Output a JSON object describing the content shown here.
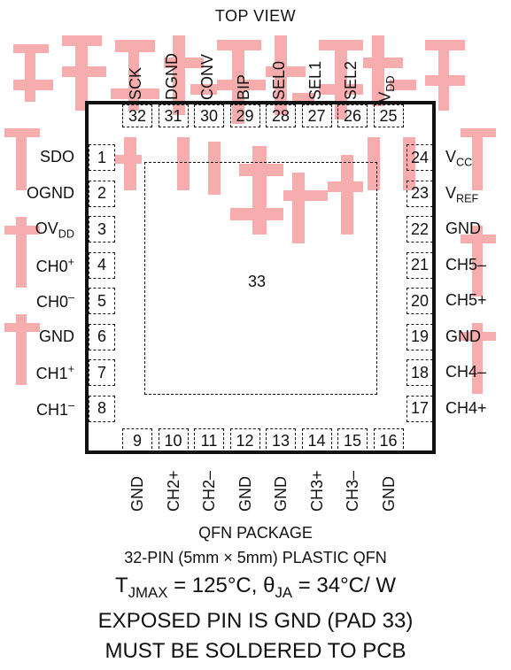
{
  "title": "TOP VIEW",
  "exposed_pad_number": "33",
  "top_pins": [
    {
      "num": "32",
      "name": "SCK"
    },
    {
      "num": "31",
      "name": "DGND"
    },
    {
      "num": "30",
      "name": "CONV"
    },
    {
      "num": "29",
      "name": "BIP"
    },
    {
      "num": "28",
      "name": "SEL0"
    },
    {
      "num": "27",
      "name": "SEL1"
    },
    {
      "num": "26",
      "name": "SEL2"
    },
    {
      "num": "25",
      "name": "V",
      "sub": "DD"
    }
  ],
  "left_pins": [
    {
      "num": "1",
      "name": "SDO"
    },
    {
      "num": "2",
      "name": "OGND"
    },
    {
      "num": "3",
      "name": "OV",
      "sub": "DD"
    },
    {
      "num": "4",
      "name": "CH0",
      "sup": "+"
    },
    {
      "num": "5",
      "name": "CH0",
      "sup": "–"
    },
    {
      "num": "6",
      "name": "GND"
    },
    {
      "num": "7",
      "name": "CH1",
      "sup": "+"
    },
    {
      "num": "8",
      "name": "CH1",
      "sup": "–"
    }
  ],
  "right_pins": [
    {
      "num": "24",
      "name": "V",
      "sub": "CC"
    },
    {
      "num": "23",
      "name": "V",
      "sub": "REF"
    },
    {
      "num": "22",
      "name": "GND"
    },
    {
      "num": "21",
      "name": "CH5–"
    },
    {
      "num": "20",
      "name": "CH5+"
    },
    {
      "num": "19",
      "name": "GND"
    },
    {
      "num": "18",
      "name": "CH4–"
    },
    {
      "num": "17",
      "name": "CH4+"
    }
  ],
  "bottom_pins": [
    {
      "num": "9",
      "name": "GND"
    },
    {
      "num": "10",
      "name": "CH2+"
    },
    {
      "num": "11",
      "name": "CH2–"
    },
    {
      "num": "12",
      "name": "GND"
    },
    {
      "num": "13",
      "name": "GND"
    },
    {
      "num": "14",
      "name": "CH3+"
    },
    {
      "num": "15",
      "name": "CH3–"
    },
    {
      "num": "16",
      "name": "GND"
    }
  ],
  "footer": {
    "package": "QFN PACKAGE",
    "package_desc": "32-PIN (5mm × 5mm) PLASTIC QFN",
    "thermal_tj": "T",
    "thermal_tj_sub": "JMAX",
    "thermal_tj_val": " = 125°C, θ",
    "thermal_theta_sub": "JA",
    "thermal_theta_val": " = 34°C/ W",
    "exposed_note": "EXPOSED PIN IS GND (PAD 33)",
    "solder_note": "MUST BE SOLDERED TO PCB"
  },
  "colors": {
    "outline": "#111111",
    "watermark": "#f26b6b"
  }
}
